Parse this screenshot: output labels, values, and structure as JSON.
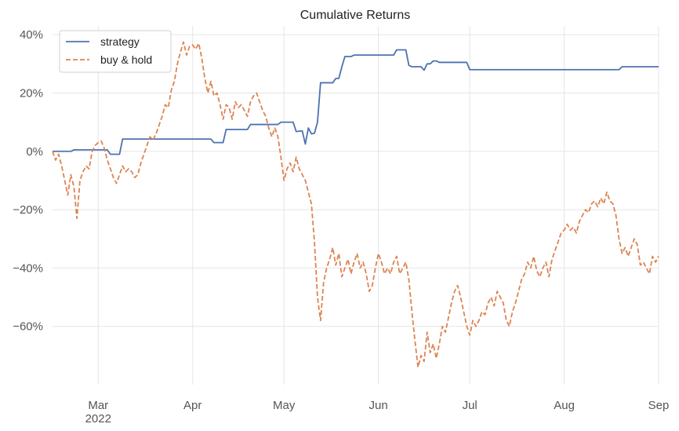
{
  "chart_data": {
    "type": "line",
    "title": "Cumulative Returns",
    "xlabel": "",
    "ylabel": "",
    "xlim": [
      "2022-02-14",
      "2022-09-01"
    ],
    "ylim": [
      -80,
      43
    ],
    "x_ticks": [
      {
        "date": "2022-03-01",
        "label": "Mar",
        "sublabel": "2022"
      },
      {
        "date": "2022-04-01",
        "label": "Apr"
      },
      {
        "date": "2022-05-01",
        "label": "May"
      },
      {
        "date": "2022-06-01",
        "label": "Jun"
      },
      {
        "date": "2022-07-01",
        "label": "Jul"
      },
      {
        "date": "2022-08-01",
        "label": "Aug"
      },
      {
        "date": "2022-09-01",
        "label": "Sep"
      }
    ],
    "y_ticks": [
      {
        "value": 40,
        "label": "40%"
      },
      {
        "value": 20,
        "label": "20%"
      },
      {
        "value": 0,
        "label": "0%"
      },
      {
        "value": -20,
        "label": "−20%"
      },
      {
        "value": -40,
        "label": "−40%"
      },
      {
        "value": -60,
        "label": "−60%"
      }
    ],
    "grid": true,
    "legend_position": "top-left",
    "series": [
      {
        "name": "strategy",
        "color": "#4c72b0",
        "style": "solid",
        "points": [
          [
            "2022-02-14",
            0
          ],
          [
            "2022-02-20",
            0
          ],
          [
            "2022-02-21",
            0.5
          ],
          [
            "2022-03-04",
            0.5
          ],
          [
            "2022-03-05",
            -1
          ],
          [
            "2022-03-08",
            -1
          ],
          [
            "2022-03-09",
            4.2
          ],
          [
            "2022-04-07",
            4.2
          ],
          [
            "2022-04-08",
            3
          ],
          [
            "2022-04-11",
            3
          ],
          [
            "2022-04-12",
            7.5
          ],
          [
            "2022-04-19",
            7.5
          ],
          [
            "2022-04-20",
            9.2
          ],
          [
            "2022-04-29",
            9.2
          ],
          [
            "2022-04-30",
            10
          ],
          [
            "2022-05-01",
            10
          ],
          [
            "2022-05-02",
            10
          ],
          [
            "2022-05-04",
            10
          ],
          [
            "2022-05-05",
            6.8
          ],
          [
            "2022-05-07",
            7
          ],
          [
            "2022-05-08",
            2.5
          ],
          [
            "2022-05-09",
            8
          ],
          [
            "2022-05-10",
            6
          ],
          [
            "2022-05-11",
            6.2
          ],
          [
            "2022-05-12",
            10
          ],
          [
            "2022-05-13",
            23.5
          ],
          [
            "2022-05-17",
            23.5
          ],
          [
            "2022-05-18",
            25
          ],
          [
            "2022-05-19",
            25
          ],
          [
            "2022-05-20",
            29
          ],
          [
            "2022-05-21",
            32.5
          ],
          [
            "2022-05-23",
            32.5
          ],
          [
            "2022-05-24",
            33
          ],
          [
            "2022-06-06",
            33
          ],
          [
            "2022-06-07",
            34.8
          ],
          [
            "2022-06-10",
            34.8
          ],
          [
            "2022-06-11",
            29.5
          ],
          [
            "2022-06-12",
            29
          ],
          [
            "2022-06-15",
            29
          ],
          [
            "2022-06-16",
            27.8
          ],
          [
            "2022-06-17",
            30
          ],
          [
            "2022-06-18",
            30
          ],
          [
            "2022-06-19",
            31
          ],
          [
            "2022-06-20",
            31
          ],
          [
            "2022-06-21",
            30.5
          ],
          [
            "2022-06-30",
            30.5
          ],
          [
            "2022-07-01",
            28
          ],
          [
            "2022-08-19",
            28
          ],
          [
            "2022-08-20",
            29
          ],
          [
            "2022-09-01",
            29
          ]
        ]
      },
      {
        "name": "buy & hold",
        "color": "#dd8452",
        "style": "dashed",
        "points": [
          [
            "2022-02-14",
            0
          ],
          [
            "2022-02-15",
            -3
          ],
          [
            "2022-02-16",
            -1
          ],
          [
            "2022-02-17",
            -5
          ],
          [
            "2022-02-18",
            -10
          ],
          [
            "2022-02-19",
            -15
          ],
          [
            "2022-02-20",
            -8
          ],
          [
            "2022-02-21",
            -12
          ],
          [
            "2022-02-22",
            -23
          ],
          [
            "2022-02-23",
            -10
          ],
          [
            "2022-02-24",
            -7
          ],
          [
            "2022-02-25",
            -5
          ],
          [
            "2022-02-26",
            -6
          ],
          [
            "2022-02-27",
            0
          ],
          [
            "2022-02-28",
            2
          ],
          [
            "2022-03-01",
            3
          ],
          [
            "2022-03-02",
            3.5
          ],
          [
            "2022-03-03",
            1
          ],
          [
            "2022-03-04",
            -3
          ],
          [
            "2022-03-05",
            -6
          ],
          [
            "2022-03-06",
            -9
          ],
          [
            "2022-03-07",
            -11
          ],
          [
            "2022-03-08",
            -8
          ],
          [
            "2022-03-09",
            -5
          ],
          [
            "2022-03-10",
            -7
          ],
          [
            "2022-03-11",
            -6
          ],
          [
            "2022-03-12",
            -7
          ],
          [
            "2022-03-13",
            -9
          ],
          [
            "2022-03-14",
            -8
          ],
          [
            "2022-03-15",
            -4
          ],
          [
            "2022-03-16",
            -1
          ],
          [
            "2022-03-17",
            2
          ],
          [
            "2022-03-18",
            5
          ],
          [
            "2022-03-19",
            4
          ],
          [
            "2022-03-20",
            6
          ],
          [
            "2022-03-21",
            9
          ],
          [
            "2022-03-22",
            12
          ],
          [
            "2022-03-23",
            16
          ],
          [
            "2022-03-24",
            15
          ],
          [
            "2022-03-25",
            21
          ],
          [
            "2022-03-26",
            24
          ],
          [
            "2022-03-27",
            30
          ],
          [
            "2022-03-28",
            34
          ],
          [
            "2022-03-29",
            37.5
          ],
          [
            "2022-03-30",
            33
          ],
          [
            "2022-03-31",
            36
          ],
          [
            "2022-04-01",
            36.5
          ],
          [
            "2022-04-02",
            35
          ],
          [
            "2022-04-03",
            37
          ],
          [
            "2022-04-04",
            32
          ],
          [
            "2022-04-05",
            25
          ],
          [
            "2022-04-06",
            20
          ],
          [
            "2022-04-07",
            24
          ],
          [
            "2022-04-08",
            19
          ],
          [
            "2022-04-09",
            20
          ],
          [
            "2022-04-10",
            16
          ],
          [
            "2022-04-11",
            11
          ],
          [
            "2022-04-12",
            16
          ],
          [
            "2022-04-13",
            15
          ],
          [
            "2022-04-14",
            11
          ],
          [
            "2022-04-15",
            17
          ],
          [
            "2022-04-16",
            15
          ],
          [
            "2022-04-17",
            16
          ],
          [
            "2022-04-18",
            14
          ],
          [
            "2022-04-19",
            12
          ],
          [
            "2022-04-20",
            17
          ],
          [
            "2022-04-21",
            19
          ],
          [
            "2022-04-22",
            20
          ],
          [
            "2022-04-23",
            17
          ],
          [
            "2022-04-24",
            14
          ],
          [
            "2022-04-25",
            12
          ],
          [
            "2022-04-26",
            8
          ],
          [
            "2022-04-27",
            5
          ],
          [
            "2022-04-28",
            8
          ],
          [
            "2022-04-29",
            5
          ],
          [
            "2022-04-30",
            -2
          ],
          [
            "2022-05-01",
            -10
          ],
          [
            "2022-05-02",
            -6
          ],
          [
            "2022-05-03",
            -4
          ],
          [
            "2022-05-04",
            -7
          ],
          [
            "2022-05-05",
            -2
          ],
          [
            "2022-05-06",
            -6
          ],
          [
            "2022-05-07",
            -8
          ],
          [
            "2022-05-08",
            -10
          ],
          [
            "2022-05-09",
            -14
          ],
          [
            "2022-05-10",
            -18
          ],
          [
            "2022-05-11",
            -31
          ],
          [
            "2022-05-12",
            -50
          ],
          [
            "2022-05-13",
            -58
          ],
          [
            "2022-05-14",
            -45
          ],
          [
            "2022-05-15",
            -40
          ],
          [
            "2022-05-16",
            -37
          ],
          [
            "2022-05-17",
            -33
          ],
          [
            "2022-05-18",
            -39
          ],
          [
            "2022-05-19",
            -35
          ],
          [
            "2022-05-20",
            -43
          ],
          [
            "2022-05-21",
            -40
          ],
          [
            "2022-05-22",
            -37
          ],
          [
            "2022-05-23",
            -42
          ],
          [
            "2022-05-24",
            -38
          ],
          [
            "2022-05-25",
            -35
          ],
          [
            "2022-05-26",
            -40
          ],
          [
            "2022-05-27",
            -38
          ],
          [
            "2022-05-28",
            -42
          ],
          [
            "2022-05-29",
            -48
          ],
          [
            "2022-05-30",
            -46
          ],
          [
            "2022-05-31",
            -40
          ],
          [
            "2022-06-01",
            -35
          ],
          [
            "2022-06-02",
            -38
          ],
          [
            "2022-06-03",
            -42
          ],
          [
            "2022-06-04",
            -40
          ],
          [
            "2022-06-05",
            -42
          ],
          [
            "2022-06-06",
            -38
          ],
          [
            "2022-06-07",
            -36
          ],
          [
            "2022-06-08",
            -42
          ],
          [
            "2022-06-09",
            -40
          ],
          [
            "2022-06-10",
            -38
          ],
          [
            "2022-06-11",
            -44
          ],
          [
            "2022-06-12",
            -55
          ],
          [
            "2022-06-13",
            -65
          ],
          [
            "2022-06-14",
            -74
          ],
          [
            "2022-06-15",
            -70
          ],
          [
            "2022-06-16",
            -72
          ],
          [
            "2022-06-17",
            -62
          ],
          [
            "2022-06-18",
            -69
          ],
          [
            "2022-06-19",
            -66
          ],
          [
            "2022-06-20",
            -71
          ],
          [
            "2022-06-21",
            -66
          ],
          [
            "2022-06-22",
            -60
          ],
          [
            "2022-06-23",
            -62
          ],
          [
            "2022-06-24",
            -57
          ],
          [
            "2022-06-25",
            -52
          ],
          [
            "2022-06-26",
            -48
          ],
          [
            "2022-06-27",
            -46
          ],
          [
            "2022-06-28",
            -50
          ],
          [
            "2022-06-29",
            -55
          ],
          [
            "2022-06-30",
            -60
          ],
          [
            "2022-07-01",
            -63
          ],
          [
            "2022-07-02",
            -58
          ],
          [
            "2022-07-03",
            -60
          ],
          [
            "2022-07-04",
            -58
          ],
          [
            "2022-07-05",
            -55
          ],
          [
            "2022-07-06",
            -56
          ],
          [
            "2022-07-07",
            -52
          ],
          [
            "2022-07-08",
            -50
          ],
          [
            "2022-07-09",
            -53
          ],
          [
            "2022-07-10",
            -48
          ],
          [
            "2022-07-11",
            -50
          ],
          [
            "2022-07-12",
            -52
          ],
          [
            "2022-07-13",
            -58
          ],
          [
            "2022-07-14",
            -60
          ],
          [
            "2022-07-15",
            -55
          ],
          [
            "2022-07-16",
            -52
          ],
          [
            "2022-07-17",
            -48
          ],
          [
            "2022-07-18",
            -44
          ],
          [
            "2022-07-19",
            -42
          ],
          [
            "2022-07-20",
            -38
          ],
          [
            "2022-07-21",
            -40
          ],
          [
            "2022-07-22",
            -36
          ],
          [
            "2022-07-23",
            -41
          ],
          [
            "2022-07-24",
            -43
          ],
          [
            "2022-07-25",
            -40
          ],
          [
            "2022-07-26",
            -38
          ],
          [
            "2022-07-27",
            -43
          ],
          [
            "2022-07-28",
            -37
          ],
          [
            "2022-07-29",
            -34
          ],
          [
            "2022-07-30",
            -31
          ],
          [
            "2022-07-31",
            -28
          ],
          [
            "2022-08-01",
            -27
          ],
          [
            "2022-08-02",
            -25
          ],
          [
            "2022-08-03",
            -27
          ],
          [
            "2022-08-04",
            -26
          ],
          [
            "2022-08-05",
            -28
          ],
          [
            "2022-08-06",
            -24
          ],
          [
            "2022-08-07",
            -22
          ],
          [
            "2022-08-08",
            -20
          ],
          [
            "2022-08-09",
            -21
          ],
          [
            "2022-08-10",
            -18
          ],
          [
            "2022-08-11",
            -17
          ],
          [
            "2022-08-12",
            -19
          ],
          [
            "2022-08-13",
            -16
          ],
          [
            "2022-08-14",
            -18
          ],
          [
            "2022-08-15",
            -14
          ],
          [
            "2022-08-16",
            -17
          ],
          [
            "2022-08-17",
            -18
          ],
          [
            "2022-08-18",
            -22
          ],
          [
            "2022-08-19",
            -30
          ],
          [
            "2022-08-20",
            -35
          ],
          [
            "2022-08-21",
            -33
          ],
          [
            "2022-08-22",
            -36
          ],
          [
            "2022-08-23",
            -33
          ],
          [
            "2022-08-24",
            -30
          ],
          [
            "2022-08-25",
            -32
          ],
          [
            "2022-08-26",
            -39
          ],
          [
            "2022-08-27",
            -38
          ],
          [
            "2022-08-28",
            -40
          ],
          [
            "2022-08-29",
            -42
          ],
          [
            "2022-08-30",
            -36
          ],
          [
            "2022-08-31",
            -38
          ],
          [
            "2022-09-01",
            -36
          ]
        ]
      }
    ]
  }
}
